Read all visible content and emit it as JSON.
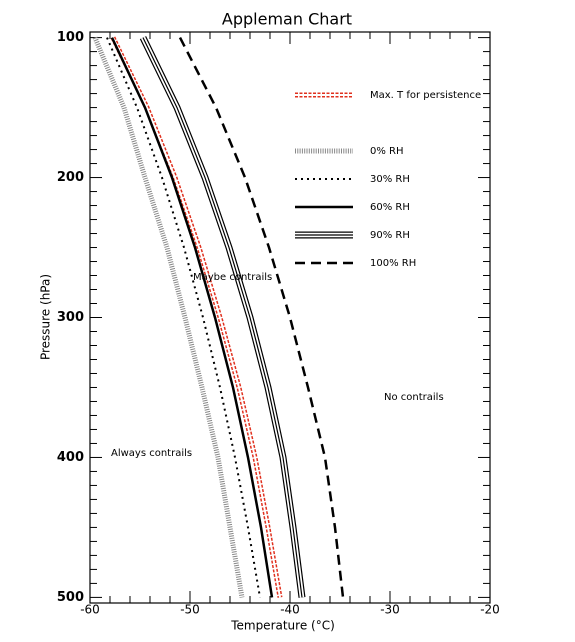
{
  "chart_data": {
    "type": "line",
    "title": "Appleman Chart",
    "xlabel": "Temperature (°C)",
    "ylabel": "Pressure (hPa)",
    "xlim": [
      -60,
      -20
    ],
    "xticks": [
      -60,
      -50,
      -40,
      -30,
      -20
    ],
    "ylim": [
      96,
      504
    ],
    "yticks": [
      100,
      200,
      300,
      400,
      500
    ],
    "y_inverted": true,
    "y": [
      100,
      150,
      200,
      250,
      300,
      350,
      400,
      450,
      500
    ],
    "series": [
      {
        "name": "Max. T for persistence",
        "color": "#e0301e",
        "style": "diamonds",
        "x": [
          -57.7,
          -54.3,
          -51.5,
          -49.1,
          -47,
          -45.1,
          -43.5,
          -42.2,
          -41
        ]
      },
      {
        "name": "0% RH",
        "color": "#888888",
        "style": "hatched",
        "x": [
          -59.5,
          -56.6,
          -54.5,
          -52.3,
          -50.5,
          -48.8,
          -47.2,
          -46,
          -44.8
        ]
      },
      {
        "name": "30% RH",
        "color": "#000000",
        "style": "dotted",
        "x": [
          -58.3,
          -55.3,
          -52.8,
          -50.6,
          -48.7,
          -47,
          -45.5,
          -44.2,
          -43
        ]
      },
      {
        "name": "60% RH",
        "color": "#000000",
        "style": "solid",
        "x": [
          -57.8,
          -54.5,
          -51.8,
          -49.5,
          -47.5,
          -45.7,
          -44.2,
          -42.9,
          -41.8
        ]
      },
      {
        "name": "90% RH",
        "color": "#000000",
        "style": "triple",
        "x": [
          -54.7,
          -51.3,
          -48.5,
          -46.1,
          -44,
          -42.2,
          -40.7,
          -39.7,
          -38.8
        ]
      },
      {
        "name": "100% RH",
        "color": "#000000",
        "style": "dashed",
        "x": [
          -51,
          -47.4,
          -44.5,
          -42.1,
          -40,
          -38.2,
          -36.5,
          -35.5,
          -34.7
        ]
      }
    ],
    "annotations": [
      "Maybe contrails",
      "No contrails",
      "Always contrails"
    ]
  }
}
